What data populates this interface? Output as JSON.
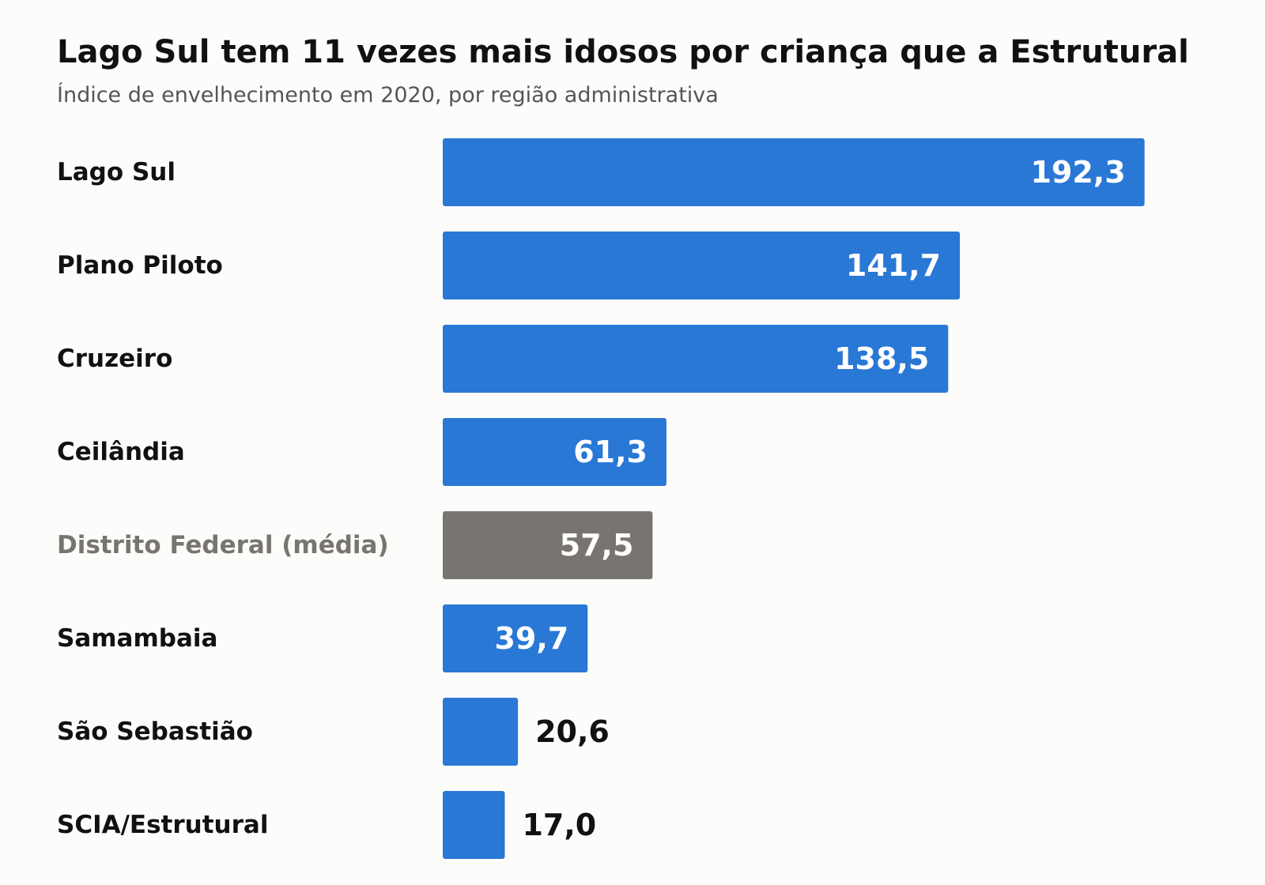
{
  "chart_data": {
    "type": "bar",
    "orientation": "horizontal",
    "title": "Lago Sul tem 11 vezes mais idosos por criança que a Estrutural",
    "subtitle": "Índice de envelhecimento em 2020, por região administrativa",
    "categories": [
      "Lago Sul",
      "Plano Piloto",
      "Cruzeiro",
      "Ceilândia",
      "Distrito Federal (média)",
      "Samambaia",
      "São Sebastião",
      "SCIA/Estrutural"
    ],
    "values": [
      192.3,
      141.7,
      138.5,
      61.3,
      57.5,
      39.7,
      20.6,
      17.0
    ],
    "value_labels": [
      "192,3",
      "141,7",
      "138,5",
      "61,3",
      "57,5",
      "39,7",
      "20,6",
      "17,0"
    ],
    "highlight_index": 4,
    "xlim": [
      0,
      200
    ],
    "grid": false,
    "legend": "none",
    "colors": {
      "bar": "#2a78d6",
      "highlight_bar": "#787570",
      "category_text": "#111111",
      "highlight_category_text": "#787570",
      "value_inside": "#ffffff",
      "value_outside": "#111111"
    }
  }
}
